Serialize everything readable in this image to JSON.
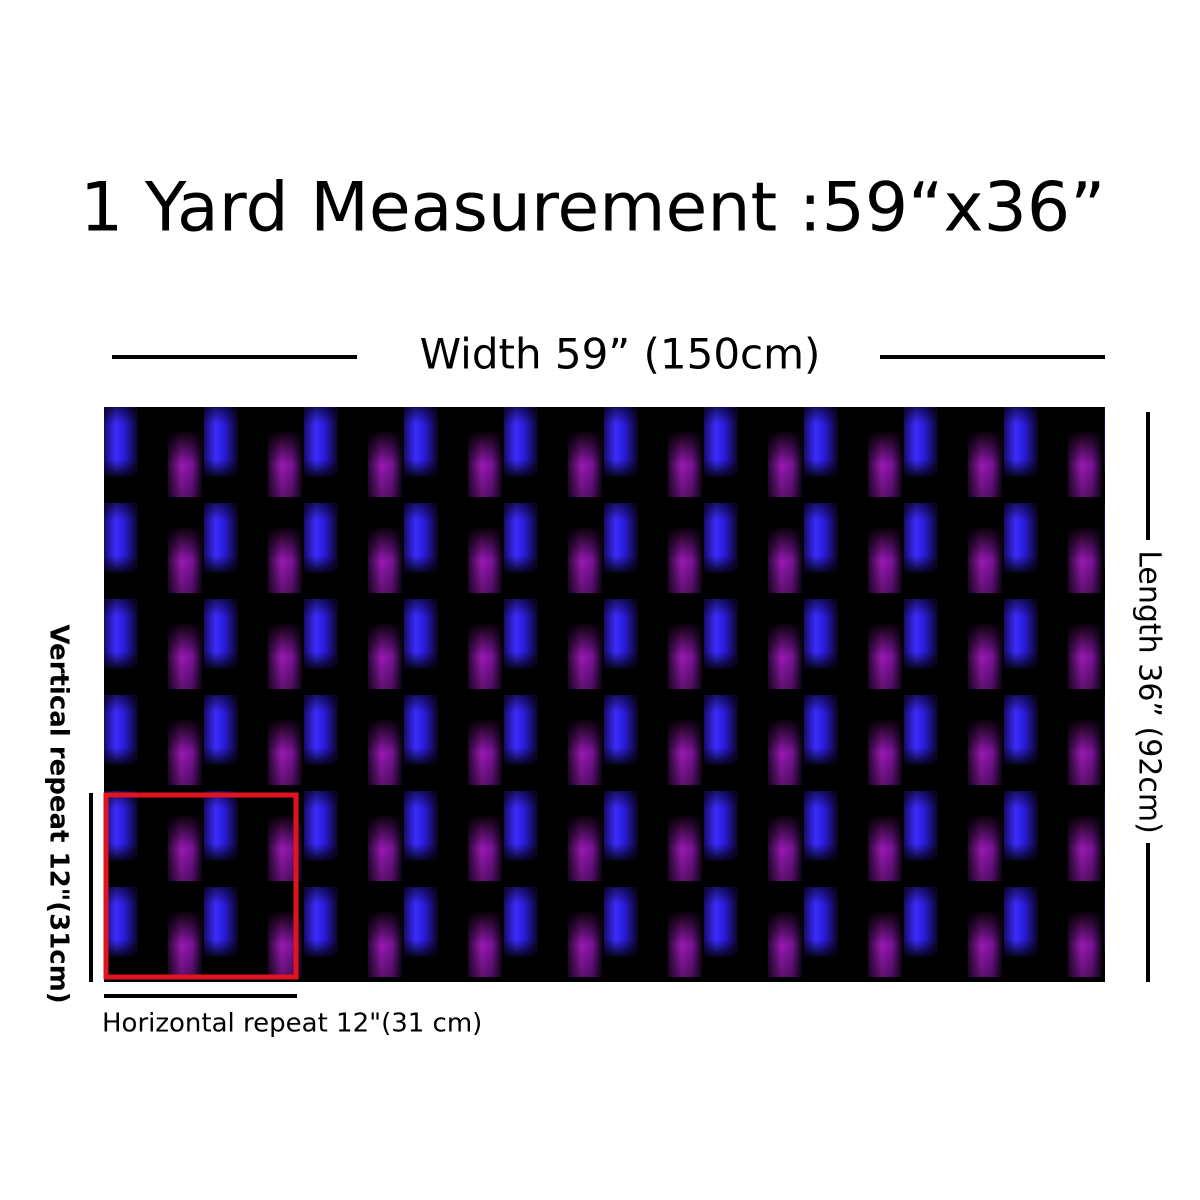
{
  "title": "1 Yard Measurement :59“x36”",
  "width_label": "Width 59”  (150cm)",
  "length_label": "Length 36”  (92cm)",
  "vertical_repeat_label": "Vertical repeat 12\"(31cm)",
  "horizontal_repeat_label": "Horizontal repeat 12\"(31 cm)"
}
